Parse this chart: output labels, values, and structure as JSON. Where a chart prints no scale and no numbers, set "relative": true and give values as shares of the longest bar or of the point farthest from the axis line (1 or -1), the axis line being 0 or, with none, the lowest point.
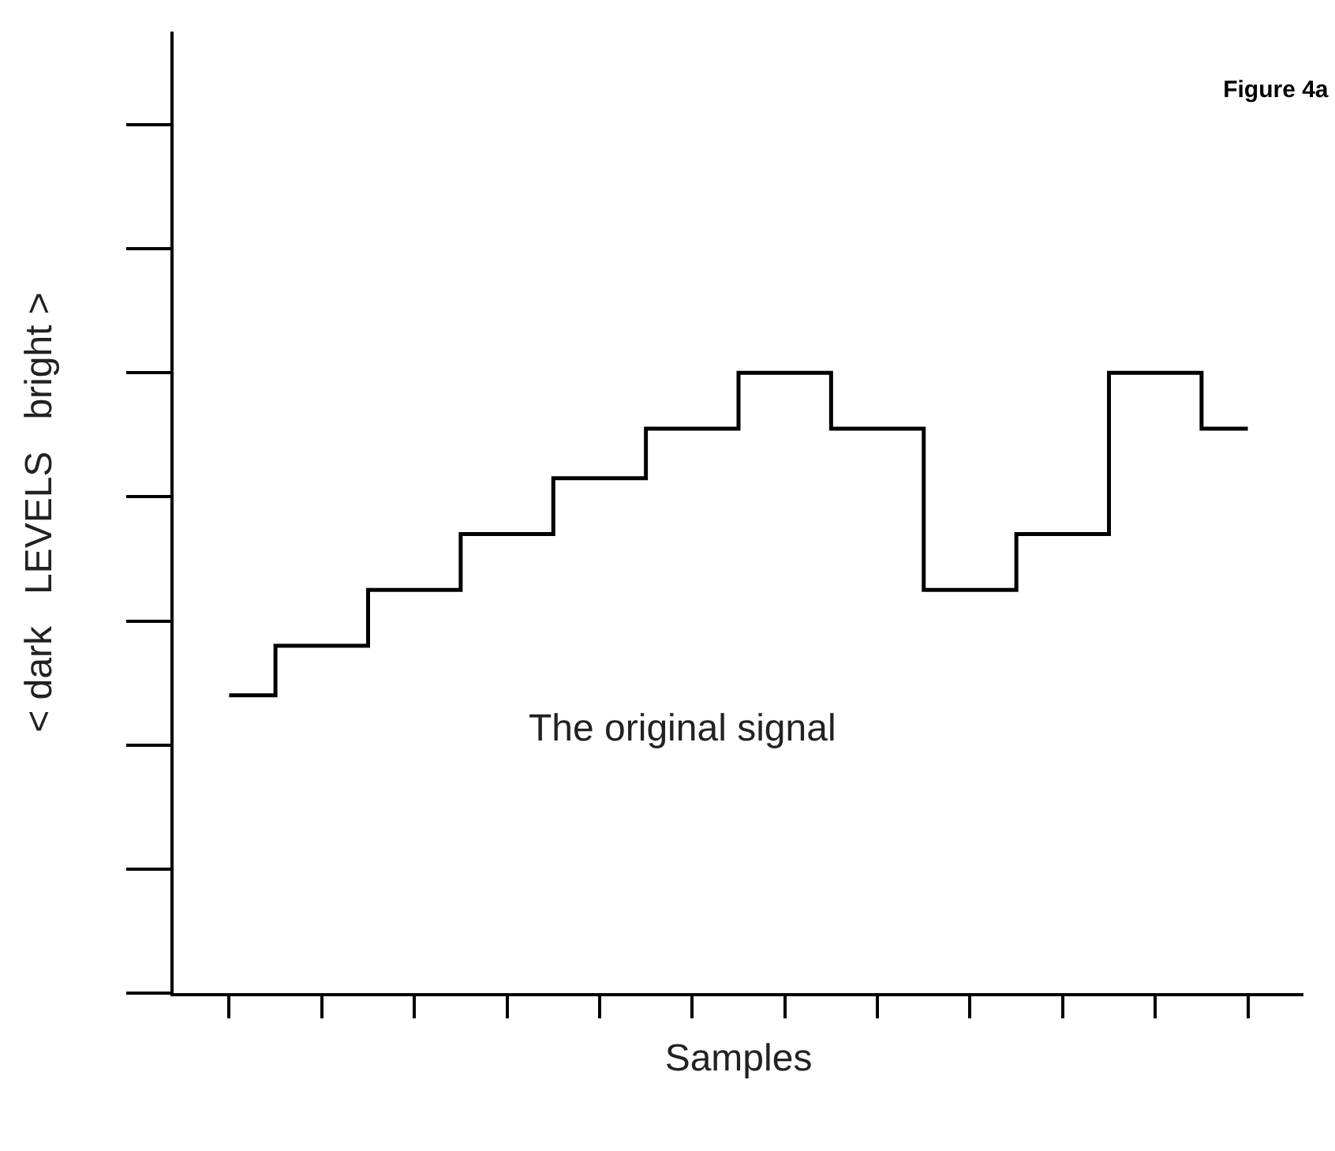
{
  "chart_data": {
    "type": "step",
    "title": "Figure 4a",
    "xlabel": "Samples",
    "ylabel": "< dark   LEVELS   bright >",
    "annotations": [
      "The original signal"
    ],
    "relative": true,
    "categories": [
      null,
      null,
      null,
      null,
      null,
      null,
      null,
      null,
      null,
      null,
      null,
      null
    ],
    "series": [
      {
        "color": "#000000",
        "values": [
          0.48,
          0.56,
          0.65,
          0.74,
          0.83,
          0.91,
          1,
          0.91,
          0.65,
          0.74,
          1,
          0.91
        ]
      }
    ],
    "marker": "none",
    "line_style": "solid"
  }
}
